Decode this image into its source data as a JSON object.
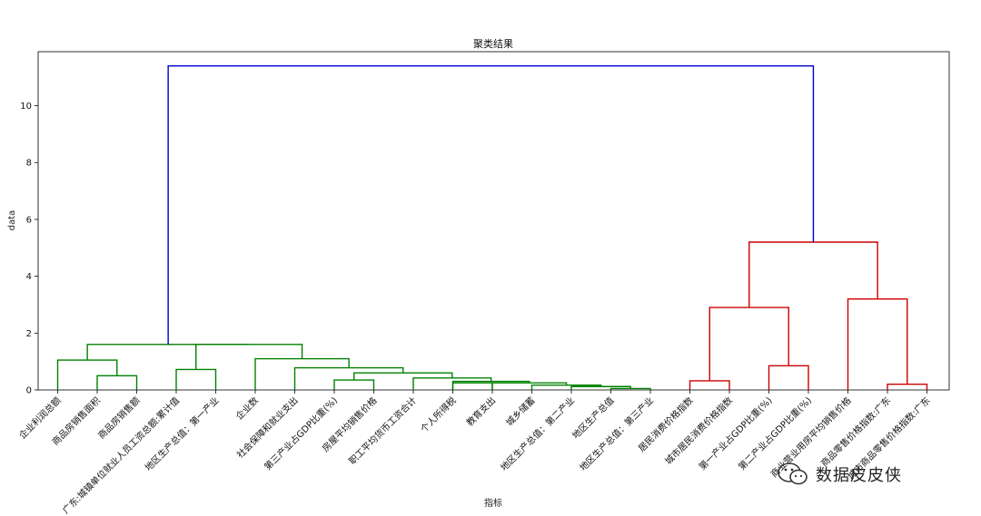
{
  "chart_data": {
    "type": "dendrogram",
    "title": "聚类结果",
    "xlabel": "指标",
    "ylabel": "data",
    "ylim": [
      0,
      11.9
    ],
    "yticks": [
      0,
      2,
      4,
      6,
      8,
      10
    ],
    "leaves": [
      "企业利润总额",
      "商品房销售面积",
      "商品房销售额",
      "广东:城镇单位就业人员工资总额:累计值",
      "地区生产总值：第一产业",
      "企业数",
      "社会保障和就业支出",
      "第三产业占GDP比重(%)",
      "房屋平均销售价格",
      "职工平均货币工资合计",
      "个人所得税",
      "教育支出",
      "城乡储蓄",
      "地区生产总值：第二产业",
      "地区生产总值",
      "地区生产总值：第三产业",
      "居民消费价格指数",
      "城市居民消费价格指数",
      "第一产业占GDP比重(%)",
      "第二产业占GDP比重(%)",
      "商业营业用房平均销售价格",
      "商品零售价格指数:广东",
      "城市商品零售价格指数:广东"
    ],
    "links": [
      {
        "children": [
          "L:1",
          "L:2"
        ],
        "height": 0.5,
        "color": "#008000"
      },
      {
        "children": [
          "L:0",
          "N:0"
        ],
        "height": 1.05,
        "color": "#008000"
      },
      {
        "children": [
          "L:3",
          "L:4"
        ],
        "height": 0.72,
        "color": "#008000"
      },
      {
        "children": [
          "L:7",
          "L:8"
        ],
        "height": 0.35,
        "color": "#008000"
      },
      {
        "children": [
          "L:14",
          "L:15"
        ],
        "height": 0.05,
        "color": "#008000"
      },
      {
        "children": [
          "L:13",
          "N:4"
        ],
        "height": 0.12,
        "color": "#008000"
      },
      {
        "children": [
          "L:12",
          "N:5"
        ],
        "height": 0.17,
        "color": "#008000"
      },
      {
        "children": [
          "L:11",
          "N:6"
        ],
        "height": 0.25,
        "color": "#008000"
      },
      {
        "children": [
          "L:10",
          "L:11"
        ],
        "height": 0.25,
        "color": "#008000"
      },
      {
        "children": [
          "L:10",
          "N:7"
        ],
        "height": 0.3,
        "color": "#008000"
      },
      {
        "children": [
          "L:9",
          "N:9"
        ],
        "height": 0.42,
        "color": "#008000"
      },
      {
        "children": [
          "N:3",
          "N:10"
        ],
        "height": 0.6,
        "color": "#008000"
      },
      {
        "children": [
          "L:6",
          "N:11"
        ],
        "height": 0.78,
        "color": "#008000"
      },
      {
        "children": [
          "L:5",
          "N:12"
        ],
        "height": 1.1,
        "color": "#008000"
      },
      {
        "children": [
          "N:2",
          "N:13"
        ],
        "height": 1.6,
        "color": "#008000"
      },
      {
        "children": [
          "N:1",
          "N:14"
        ],
        "height": 1.6,
        "color": "#008000"
      },
      {
        "children": [
          "L:16",
          "L:17"
        ],
        "height": 0.32,
        "color": "#cc0000"
      },
      {
        "children": [
          "L:18",
          "L:19"
        ],
        "height": 0.85,
        "color": "#cc0000"
      },
      {
        "children": [
          "N:16",
          "N:17"
        ],
        "height": 2.9,
        "color": "#cc0000"
      },
      {
        "children": [
          "L:21",
          "L:22"
        ],
        "height": 0.2,
        "color": "#cc0000"
      },
      {
        "children": [
          "L:20",
          "N:19"
        ],
        "height": 3.2,
        "color": "#cc0000"
      },
      {
        "children": [
          "N:18",
          "N:20"
        ],
        "height": 5.2,
        "color": "#cc0000"
      },
      {
        "children": [
          "N:15",
          "N:21"
        ],
        "height": 11.4,
        "color": "#0000cc"
      }
    ]
  },
  "watermark": {
    "icon": "wechat-icon",
    "text": "数据皮皮侠"
  }
}
